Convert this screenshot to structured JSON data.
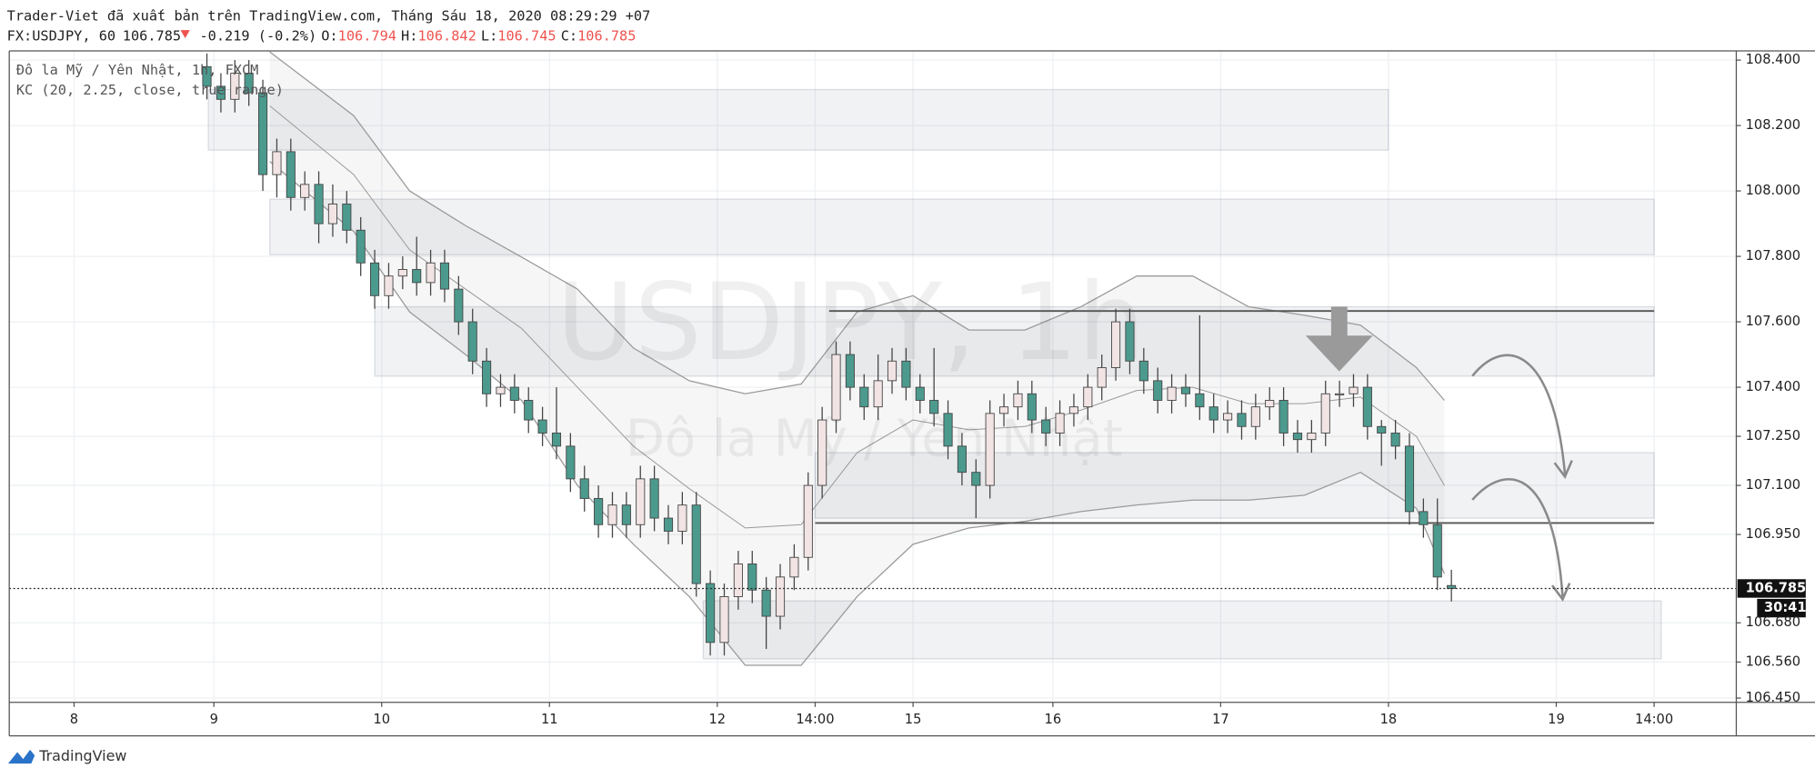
{
  "header": {
    "publisher": "Trader-Viet đã xuất bản trên TradingView.com, Tháng Sáu 18, 2020 08:29:29 +07",
    "symbol": "FX:USDJPY, 60",
    "last": "106.785",
    "change": "-0.219 (-0.2%)",
    "open_label": "O:",
    "open": "106.794",
    "high_label": "H:",
    "high": "106.842",
    "low_label": "L:",
    "low": "106.745",
    "close_label": "C:",
    "close": "106.785"
  },
  "chart_data": {
    "type": "candlestick",
    "legend": [
      "Đô la Mỹ / Yên Nhật, 1h, FXCM",
      "KC (20, 2.25, close, true range)"
    ],
    "watermark": {
      "title": "USDJPY, 1h",
      "subtitle": "Đô la Mỹ / Yên Nhật"
    },
    "up_color": "#f2e4e4",
    "down_color": "#4c9a8e",
    "wick_color": "#444444",
    "x": [
      19,
      21,
      23,
      25,
      27,
      29,
      31,
      33,
      35,
      37,
      39,
      41,
      43,
      45,
      47,
      49,
      51,
      53,
      55,
      57,
      59,
      61,
      63,
      65,
      67,
      69,
      71,
      73,
      75,
      77,
      79,
      81,
      83,
      85,
      87,
      89,
      91,
      93,
      95,
      97,
      99,
      101,
      103,
      105,
      107,
      109,
      111,
      113,
      115,
      117,
      119,
      121,
      123,
      125,
      127,
      129,
      131,
      133,
      135,
      137,
      139,
      141,
      143,
      145,
      147,
      149,
      151,
      153,
      155,
      157,
      159,
      161,
      163,
      165,
      167,
      169,
      171,
      173,
      175,
      177,
      179,
      181,
      183,
      185,
      187,
      189,
      191,
      193,
      195,
      197
    ],
    "open": [
      108.38,
      108.32,
      108.28,
      108.36,
      108.3,
      108.05,
      108.12,
      107.98,
      108.02,
      107.9,
      107.96,
      107.88,
      107.78,
      107.68,
      107.74,
      107.76,
      107.72,
      107.78,
      107.7,
      107.6,
      107.48,
      107.38,
      107.4,
      107.36,
      107.3,
      107.26,
      107.22,
      107.12,
      107.06,
      106.98,
      107.04,
      106.98,
      107.12,
      107.0,
      106.96,
      107.04,
      106.8,
      106.62,
      106.76,
      106.86,
      106.78,
      106.7,
      106.82,
      106.88,
      107.1,
      107.3,
      107.5,
      107.4,
      107.34,
      107.42,
      107.48,
      107.4,
      107.36,
      107.32,
      107.22,
      107.14,
      107.1,
      107.32,
      107.34,
      107.38,
      107.3,
      107.26,
      107.32,
      107.34,
      107.4,
      107.46,
      107.6,
      107.48,
      107.42,
      107.36,
      107.4,
      107.38,
      107.34,
      107.3,
      107.32,
      107.28,
      107.34,
      107.36,
      107.26,
      107.24,
      107.26,
      107.38,
      107.38,
      107.4,
      107.28,
      107.26,
      107.22,
      107.02,
      106.98,
      106.794
    ],
    "high": [
      108.42,
      108.36,
      108.4,
      108.4,
      108.34,
      108.16,
      108.16,
      108.06,
      108.06,
      108.02,
      108.0,
      107.92,
      107.82,
      107.78,
      107.8,
      107.86,
      107.82,
      107.82,
      107.74,
      107.64,
      107.52,
      107.44,
      107.44,
      107.4,
      107.34,
      107.4,
      107.26,
      107.16,
      107.1,
      107.08,
      107.08,
      107.16,
      107.16,
      107.04,
      107.08,
      107.08,
      106.84,
      106.8,
      106.9,
      106.9,
      106.82,
      106.86,
      106.92,
      107.14,
      107.34,
      107.54,
      107.54,
      107.44,
      107.5,
      107.52,
      107.52,
      107.44,
      107.52,
      107.36,
      107.26,
      107.18,
      107.36,
      107.38,
      107.42,
      107.42,
      107.34,
      107.36,
      107.38,
      107.44,
      107.5,
      107.64,
      107.64,
      107.52,
      107.46,
      107.44,
      107.44,
      107.62,
      107.38,
      107.36,
      107.36,
      107.38,
      107.4,
      107.4,
      107.3,
      107.3,
      107.42,
      107.42,
      107.44,
      107.44,
      107.3,
      107.3,
      107.26,
      107.06,
      107.06,
      106.842
    ],
    "low": [
      108.28,
      108.24,
      108.24,
      108.26,
      108.0,
      107.98,
      107.94,
      107.94,
      107.84,
      107.86,
      107.84,
      107.74,
      107.64,
      107.64,
      107.7,
      107.68,
      107.68,
      107.66,
      107.56,
      107.44,
      107.34,
      107.34,
      107.32,
      107.26,
      107.22,
      107.18,
      107.08,
      107.02,
      106.94,
      106.94,
      106.94,
      106.94,
      106.96,
      106.92,
      106.92,
      106.76,
      106.58,
      106.58,
      106.72,
      106.74,
      106.6,
      106.66,
      106.78,
      106.84,
      107.06,
      107.26,
      107.36,
      107.3,
      107.3,
      107.38,
      107.36,
      107.32,
      107.28,
      107.18,
      107.1,
      107.0,
      107.06,
      107.28,
      107.3,
      107.26,
      107.22,
      107.22,
      107.28,
      107.3,
      107.36,
      107.42,
      107.44,
      107.38,
      107.32,
      107.32,
      107.34,
      107.3,
      107.26,
      107.26,
      107.24,
      107.24,
      107.3,
      107.22,
      107.2,
      107.2,
      107.22,
      107.34,
      107.34,
      107.24,
      107.16,
      107.18,
      106.98,
      106.94,
      106.78,
      106.745
    ],
    "close": [
      108.32,
      108.28,
      108.36,
      108.3,
      108.05,
      108.12,
      107.98,
      108.02,
      107.9,
      107.96,
      107.88,
      107.78,
      107.68,
      107.74,
      107.76,
      107.72,
      107.78,
      107.7,
      107.6,
      107.48,
      107.38,
      107.4,
      107.36,
      107.3,
      107.26,
      107.22,
      107.12,
      107.06,
      106.98,
      107.04,
      106.98,
      107.12,
      107.0,
      106.96,
      107.04,
      106.8,
      106.62,
      106.76,
      106.86,
      106.78,
      106.7,
      106.82,
      106.88,
      107.1,
      107.3,
      107.5,
      107.4,
      107.34,
      107.42,
      107.48,
      107.4,
      107.36,
      107.32,
      107.22,
      107.14,
      107.1,
      107.32,
      107.34,
      107.38,
      107.3,
      107.26,
      107.32,
      107.34,
      107.4,
      107.46,
      107.6,
      107.48,
      107.42,
      107.36,
      107.4,
      107.38,
      107.34,
      107.3,
      107.32,
      107.28,
      107.34,
      107.36,
      107.26,
      107.24,
      107.26,
      107.38,
      107.38,
      107.4,
      107.28,
      107.26,
      107.22,
      107.02,
      106.98,
      106.82,
      106.785
    ],
    "channel": {
      "color": "#9a9a9a",
      "x": [
        28,
        40,
        48,
        56,
        64,
        72,
        80,
        88,
        96,
        104,
        112,
        120,
        128,
        136,
        144,
        152,
        160,
        168,
        176,
        184,
        192,
        196
      ],
      "upper": [
        108.425,
        108.23,
        108.0,
        107.894,
        107.798,
        107.7,
        107.52,
        107.42,
        107.38,
        107.41,
        107.63,
        107.68,
        107.575,
        107.575,
        107.646,
        107.74,
        107.74,
        107.646,
        107.62,
        107.59,
        107.46,
        107.36
      ],
      "middle": [
        108.26,
        108.05,
        107.82,
        107.7,
        107.58,
        107.4,
        107.22,
        107.09,
        106.97,
        106.98,
        107.2,
        107.3,
        107.27,
        107.28,
        107.33,
        107.39,
        107.4,
        107.35,
        107.35,
        107.37,
        107.25,
        107.1
      ],
      "lower": [
        108.09,
        107.876,
        107.63,
        107.5,
        107.36,
        107.1,
        106.92,
        106.76,
        106.55,
        106.55,
        106.76,
        106.92,
        106.97,
        106.99,
        107.02,
        107.04,
        107.055,
        107.055,
        107.07,
        107.14,
        107.03,
        106.83
      ]
    },
    "zones": [
      {
        "x": [
          19.2,
          188
        ],
        "y": [
          108.31,
          108.125
        ]
      },
      {
        "x": [
          28,
          226
        ],
        "y": [
          107.975,
          107.805
        ]
      },
      {
        "x": [
          43,
          226
        ],
        "y": [
          107.646,
          107.434
        ]
      },
      {
        "x": [
          106,
          226
        ],
        "y": [
          107.2,
          107.0
        ]
      },
      {
        "x": [
          90,
          227
        ],
        "y": [
          106.747,
          106.57
        ]
      }
    ],
    "levels": [
      {
        "x": [
          108,
          226
        ],
        "y": 107.633
      },
      {
        "x": [
          106,
          226
        ],
        "y": 106.985
      }
    ],
    "last_price": {
      "value": 106.785,
      "label": "106.785"
    },
    "countdown": "30:41",
    "xlim": [
      -9.27,
      237.75
    ],
    "ylim": [
      106.437,
      108.428
    ],
    "xticks": [
      {
        "value": 0,
        "label": "8"
      },
      {
        "value": 20,
        "label": "9"
      },
      {
        "value": 44,
        "label": "10"
      },
      {
        "value": 68,
        "label": "11"
      },
      {
        "value": 92,
        "label": "12"
      },
      {
        "value": 106,
        "label": "14:00"
      },
      {
        "value": 120,
        "label": "15"
      },
      {
        "value": 140,
        "label": "16"
      },
      {
        "value": 164,
        "label": "17"
      },
      {
        "value": 188,
        "label": "18"
      },
      {
        "value": 212,
        "label": "19"
      },
      {
        "value": 226,
        "label": "14:00"
      }
    ],
    "yticks": [
      {
        "value": 108.4,
        "label": "108.400"
      },
      {
        "value": 108.2,
        "label": "108.200"
      },
      {
        "value": 108.0,
        "label": "108.000"
      },
      {
        "value": 107.8,
        "label": "107.800"
      },
      {
        "value": 107.6,
        "label": "107.600"
      },
      {
        "value": 107.4,
        "label": "107.400"
      },
      {
        "value": 107.25,
        "label": "107.250"
      },
      {
        "value": 107.1,
        "label": "107.100"
      },
      {
        "value": 106.95,
        "label": "106.950"
      },
      {
        "value": 106.68,
        "label": "106.680"
      },
      {
        "value": 106.56,
        "label": "106.560"
      },
      {
        "value": 106.45,
        "label": "106.450"
      }
    ],
    "grid": true
  },
  "footer": {
    "brand": "TradingView"
  }
}
